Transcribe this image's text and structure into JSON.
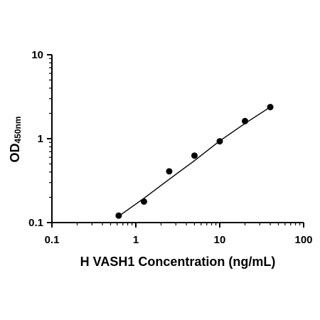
{
  "chart_data": {
    "type": "scatter",
    "xlabel": "H VASH1 Concentration (ng/mL)",
    "ylabel_main": "OD",
    "ylabel_sub": "450nm",
    "xscale": "log",
    "yscale": "log",
    "xlim": [
      0.1,
      100
    ],
    "ylim": [
      0.1,
      10
    ],
    "x_ticks": [
      "0.1",
      "1",
      "10",
      "100"
    ],
    "y_ticks": [
      "0.1",
      "1",
      "10"
    ],
    "grid": false,
    "series": [
      {
        "x": [
          0.625,
          1.25,
          2.5,
          5,
          10,
          20,
          40
        ],
        "y": [
          0.121,
          0.178,
          0.408,
          0.628,
          0.93,
          1.62,
          2.38
        ]
      }
    ],
    "fit_curve": {
      "x": [
        0.625,
        1.25,
        2.5,
        5,
        10,
        20,
        40
      ],
      "y": [
        0.119,
        0.195,
        0.328,
        0.547,
        0.94,
        1.52,
        2.38
      ]
    },
    "colors": {
      "axis": "#000000",
      "points": "#000000",
      "fit": "#000000"
    }
  }
}
